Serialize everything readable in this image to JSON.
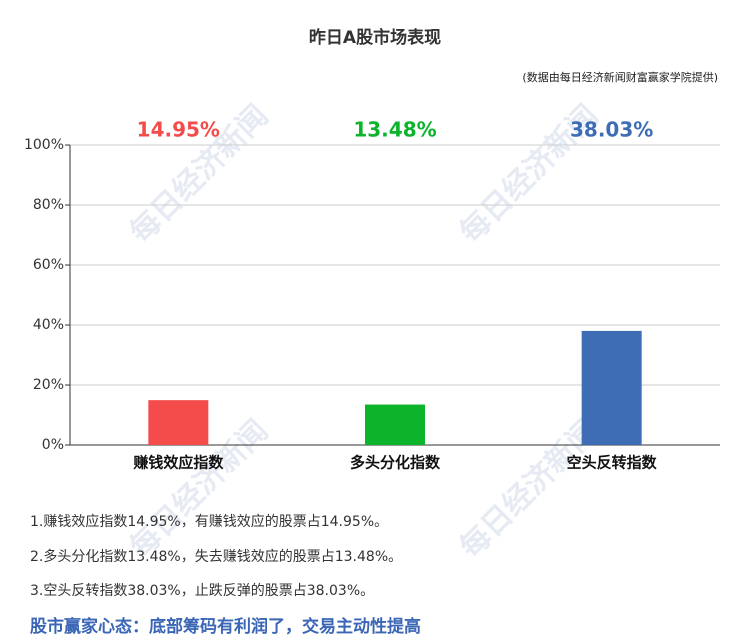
{
  "chart_data": {
    "type": "bar",
    "title": "昨日A股市场表现",
    "subtitle": "(数据由每日经济新闻财富赢家学院提供)",
    "categories": [
      "赚钱效应指数",
      "多头分化指数",
      "空头反转指数"
    ],
    "values": [
      14.95,
      13.48,
      38.03
    ],
    "value_labels": [
      "14.95%",
      "13.48%",
      "38.03%"
    ],
    "colors": [
      "#f44b4b",
      "#0cb42c",
      "#3e6db5"
    ],
    "ylim": [
      0,
      100
    ],
    "yticks": [
      {
        "value": 0,
        "label": "0%"
      },
      {
        "value": 20,
        "label": "20%"
      },
      {
        "value": 40,
        "label": "40%"
      },
      {
        "value": 60,
        "label": "60%"
      },
      {
        "value": 80,
        "label": "80%"
      },
      {
        "value": 100,
        "label": "100%"
      }
    ],
    "grid": true
  },
  "watermark": "每日经济新闻",
  "notes": [
    "1.赚钱效应指数14.95%，有赚钱效应的股票占14.95%。",
    "2.多头分化指数13.48%，失去赚钱效应的股票占13.48%。",
    "3.空头反转指数38.03%，止跌反弹的股票占38.03%。"
  ],
  "headline": "股市赢家心态：底部筹码有利润了，交易主动性提高"
}
